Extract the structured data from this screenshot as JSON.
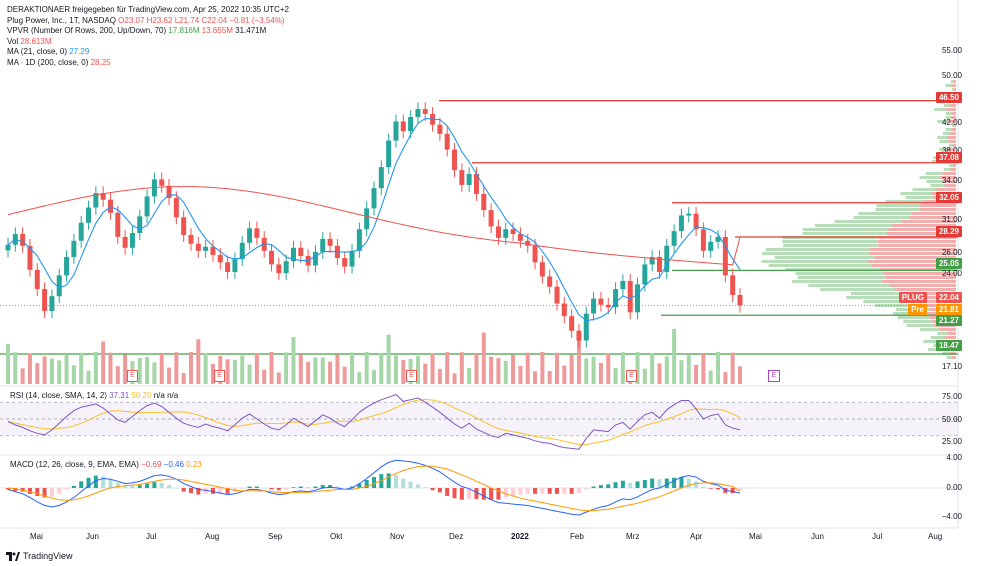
{
  "header": {
    "title_line": "DERAKTIONAER freigegeben für TradingView.com, Apr 25, 2022 10:35 UTC+2",
    "symbol_line": {
      "name": "Plug Power, Inc., 1T, NASDAQ",
      "o": "O23.07",
      "h": "H23.62",
      "l": "L21.74",
      "c": "C22.04",
      "chg": "−0.81 (−3.54%)"
    },
    "vpvr_line": {
      "label": "VPVR (Number Of Rows, 200, Up/Down, 70)",
      "v1": "17.816M",
      "v2": "13.655M",
      "v3": "31.471M"
    },
    "vol_line": {
      "label": "Vol",
      "v": "28.613M"
    },
    "ma21_line": {
      "label": "MA (21, close, 0)",
      "v": "27.29"
    },
    "ma200_line": {
      "label": "MA ∙ 1D (200, close, 0)",
      "v": "28.25"
    }
  },
  "colors": {
    "up": "#26a69a",
    "down": "#ef5350",
    "ma21": "#2196f3",
    "ma200": "#ef5350",
    "resistance": "#e53935",
    "support": "#43a047",
    "rsi": "#7e57c2",
    "rsi_ma": "#fbc02d",
    "macd": "#2962ff",
    "signal": "#ff9800",
    "vp_up": "#a5d6a7",
    "vp_down": "#ef9a9a"
  },
  "price_axis": {
    "ticks": [
      "55.00",
      "50.00",
      "42.00",
      "38.00",
      "34.00",
      "31.00",
      "26.00",
      "24.00",
      "17.10"
    ]
  },
  "level_tags": [
    {
      "text": "46.50",
      "kind": "resistance",
      "price": 46.5
    },
    {
      "text": "37.08",
      "kind": "resistance",
      "price": 37.08
    },
    {
      "text": "32.05",
      "kind": "resistance",
      "price": 32.05
    },
    {
      "text": "28.29",
      "kind": "resistance",
      "price": 28.29
    },
    {
      "text": "25.05",
      "kind": "support",
      "price": 25.05
    },
    {
      "text": "21.27",
      "kind": "support",
      "price": 21.27
    },
    {
      "text": "18.47",
      "kind": "support",
      "price": 18.47
    }
  ],
  "price_tags": {
    "symbol": "PLUG",
    "last": "22.04",
    "pre_label": "Pre",
    "pre": "21.81"
  },
  "earnings_marker": "E",
  "x_axis": {
    "labels": [
      "Mai",
      "Jun",
      "Jul",
      "Aug",
      "Sep",
      "Okt",
      "Nov",
      "Dez",
      "2022",
      "Feb",
      "Mrz",
      "Apr",
      "Mai",
      "Jun",
      "Jul",
      "Aug"
    ]
  },
  "rsi": {
    "label": "RSI (14, close, SMA, 14, 2)",
    "v1": "37.31",
    "v2": "50.20",
    "v3": "n/a",
    "v4": "n/a",
    "ticks": [
      "75.00",
      "50.00",
      "25.00"
    ]
  },
  "macd": {
    "label": "MACD (12, 26, close, 9, EMA, EMA)",
    "v1": "−0.69",
    "v2": "−0.46",
    "v3": "0.23",
    "ticks": [
      "4.00",
      "0.00",
      "−4.00"
    ]
  },
  "footer": {
    "brand": "TradingView"
  },
  "chart_data": {
    "type": "candlestick",
    "title": "Plug Power, Inc., 1T, NASDAQ",
    "xlabel": "",
    "ylabel": "",
    "scale": "log",
    "ylim": [
      16.8,
      58
    ],
    "series": [
      {
        "name": "Plug Power, Inc.",
        "close": [
          27.5,
          28.6,
          27.4,
          25.1,
          23.4,
          21.6,
          22.8,
          24.6,
          26.3,
          27.9,
          29.8,
          31.5,
          33.2,
          32.4,
          30.9,
          28.3,
          27.2,
          28.7,
          30.5,
          32.8,
          34.9,
          34.1,
          32.6,
          30.4,
          28.5,
          27.6,
          26.9,
          27.3,
          26.5,
          25.8,
          24.9,
          26.1,
          27.7,
          29.2,
          28.2,
          26.9,
          25.6,
          24.8,
          25.9,
          27.2,
          26.4,
          25.5,
          26.8,
          28.1,
          27.4,
          26.2,
          25.4,
          26.9,
          29.1,
          31.4,
          33.8,
          36.5,
          40.2,
          43.1,
          41.6,
          43.8,
          45.1,
          44.3,
          42.6,
          41.2,
          38.9,
          36.1,
          34.2,
          35.6,
          33.1,
          31.2,
          29.4,
          28.2,
          29.1,
          28.6,
          27.9,
          27.4,
          25.8,
          24.5,
          23.6,
          22.2,
          21.2,
          20.1,
          19.4,
          21.4,
          22.6,
          22.1,
          21.9,
          23.4,
          24.1,
          21.5,
          23.8,
          25.6,
          26.3,
          24.9,
          27.4,
          28.9,
          30.6,
          30.8,
          29.1,
          26.9,
          27.8,
          28.3,
          24.6,
          22.9,
          22.04
        ]
      }
    ],
    "lines": [
      {
        "name": "MA (21, close, 0)",
        "last": 27.29
      },
      {
        "name": "MA ∙ 1D (200, close, 0)",
        "last": 28.25
      }
    ],
    "levels": [
      46.5,
      37.08,
      32.05,
      28.29,
      25.05,
      21.27,
      18.47
    ],
    "rsi": {
      "ylim": [
        0,
        100
      ],
      "values": [
        47,
        43,
        40,
        36,
        33,
        31,
        37,
        45,
        53,
        60,
        64,
        66,
        68,
        63,
        56,
        49,
        46,
        53,
        60,
        66,
        69,
        65,
        58,
        51,
        45,
        42,
        40,
        44,
        41,
        39,
        36,
        43,
        51,
        56,
        50,
        44,
        39,
        37,
        43,
        51,
        46,
        41,
        48,
        55,
        51,
        45,
        41,
        49,
        58,
        64,
        69,
        73,
        76,
        79,
        71,
        73,
        75,
        70,
        64,
        58,
        51,
        44,
        39,
        45,
        38,
        34,
        30,
        28,
        33,
        31,
        29,
        27,
        24,
        22,
        21,
        18,
        16,
        15,
        14,
        27,
        37,
        36,
        35,
        43,
        46,
        38,
        47,
        55,
        58,
        51,
        61,
        67,
        72,
        72,
        62,
        50,
        54,
        56,
        43,
        39,
        37.31
      ]
    },
    "macd": {
      "ylim": [
        -5,
        4.6
      ],
      "macd": [
        -0.2,
        -0.5,
        -0.8,
        -1.3,
        -1.9,
        -2.4,
        -2.6,
        -2.4,
        -1.9,
        -1.3,
        -0.5,
        0.3,
        1.0,
        1.3,
        1.2,
        0.9,
        0.6,
        0.7,
        0.9,
        1.3,
        1.7,
        1.8,
        1.6,
        1.2,
        0.6,
        0.2,
        -0.2,
        -0.3,
        -0.5,
        -0.7,
        -0.9,
        -0.8,
        -0.5,
        -0.2,
        -0.2,
        -0.4,
        -0.7,
        -0.9,
        -0.8,
        -0.5,
        -0.4,
        -0.5,
        -0.3,
        0.0,
        0.1,
        0.0,
        -0.2,
        0.0,
        0.6,
        1.3,
        2.1,
        2.9,
        3.5,
        3.8,
        3.7,
        3.6,
        3.4,
        3.1,
        2.7,
        2.2,
        1.5,
        0.8,
        0.2,
        -0.1,
        -0.6,
        -1.1,
        -1.6,
        -2.0,
        -2.1,
        -2.2,
        -2.3,
        -2.4,
        -2.6,
        -2.8,
        -3.0,
        -3.2,
        -3.4,
        -3.6,
        -3.7,
        -3.3,
        -2.9,
        -2.6,
        -2.4,
        -1.9,
        -1.5,
        -1.6,
        -1.2,
        -0.7,
        -0.2,
        0.0,
        0.5,
        1.0,
        1.5,
        1.7,
        1.5,
        0.9,
        0.6,
        0.4,
        -0.3,
        -0.5,
        -0.69
      ],
      "signal": [
        0.0,
        -0.1,
        -0.3,
        -0.5,
        -0.8,
        -1.1,
        -1.4,
        -1.6,
        -1.7,
        -1.6,
        -1.4,
        -1.1,
        -0.7,
        -0.3,
        0.0,
        0.2,
        0.3,
        0.4,
        0.5,
        0.7,
        0.9,
        1.1,
        1.2,
        1.2,
        1.1,
        0.9,
        0.7,
        0.5,
        0.3,
        0.1,
        -0.1,
        -0.3,
        -0.4,
        -0.4,
        -0.4,
        -0.4,
        -0.5,
        -0.6,
        -0.6,
        -0.6,
        -0.6,
        -0.6,
        -0.5,
        -0.4,
        -0.3,
        -0.2,
        -0.2,
        -0.2,
        0.0,
        0.2,
        0.6,
        1.0,
        1.5,
        2.0,
        2.4,
        2.7,
        2.9,
        3.0,
        3.0,
        2.8,
        2.6,
        2.2,
        1.8,
        1.4,
        0.9,
        0.5,
        0.0,
        -0.4,
        -0.8,
        -1.1,
        -1.4,
        -1.6,
        -1.8,
        -2.0,
        -2.2,
        -2.4,
        -2.6,
        -2.8,
        -3.0,
        -3.1,
        -3.1,
        -3.0,
        -2.9,
        -2.7,
        -2.5,
        -2.3,
        -2.1,
        -1.8,
        -1.5,
        -1.2,
        -0.8,
        -0.4,
        0.0,
        0.4,
        0.6,
        0.7,
        0.7,
        0.6,
        0.4,
        0.2,
        -0.46
      ]
    }
  }
}
